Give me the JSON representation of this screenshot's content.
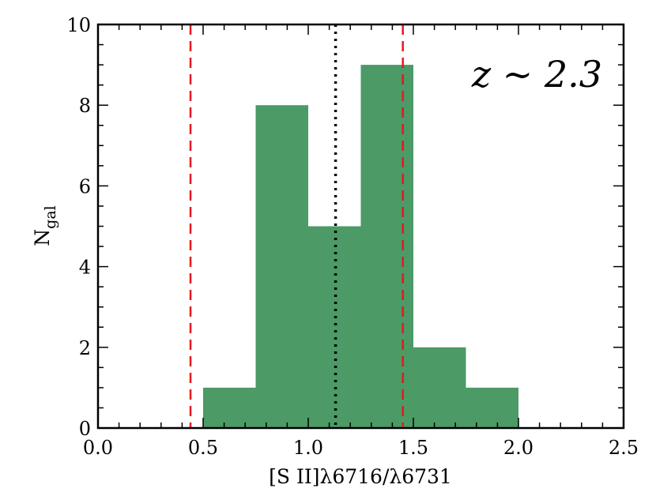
{
  "chart_data": {
    "type": "bar",
    "bins": [
      {
        "x0": 0.5,
        "x1": 0.75,
        "count": 1
      },
      {
        "x0": 0.75,
        "x1": 1.0,
        "count": 8
      },
      {
        "x0": 1.0,
        "x1": 1.25,
        "count": 5
      },
      {
        "x0": 1.25,
        "x1": 1.5,
        "count": 9
      },
      {
        "x0": 1.5,
        "x1": 1.75,
        "count": 2
      },
      {
        "x0": 1.75,
        "x1": 2.0,
        "count": 1
      }
    ],
    "xlim": [
      0.0,
      2.5
    ],
    "ylim": [
      0,
      10
    ],
    "xticks": [
      "0.0",
      "0.5",
      "1.0",
      "1.5",
      "2.0",
      "2.5"
    ],
    "xtick_values": [
      0.0,
      0.5,
      1.0,
      1.5,
      2.0,
      2.5
    ],
    "yticks": [
      "0",
      "2",
      "4",
      "6",
      "8",
      "10"
    ],
    "ytick_values": [
      0,
      2,
      4,
      6,
      8,
      10
    ],
    "xlabel": "[S II]λ6716/λ6731",
    "ylabel": "N",
    "ylabel_subscript": "gal",
    "annotation": "z ∼ 2.3",
    "grid": false,
    "reference_lines": [
      {
        "x": 0.44,
        "style": "dashed",
        "color": "#e8181c"
      },
      {
        "x": 1.13,
        "style": "dotted",
        "color": "#000000"
      },
      {
        "x": 1.45,
        "style": "dashed",
        "color": "#e8181c"
      }
    ],
    "bar_color": "#4c9a66"
  }
}
